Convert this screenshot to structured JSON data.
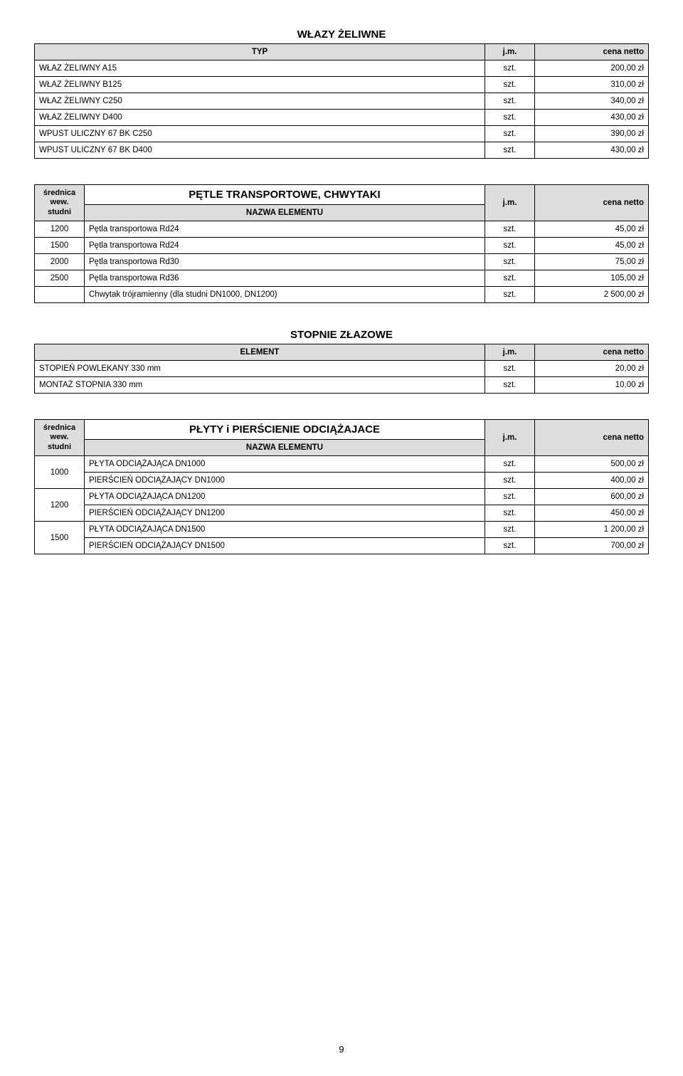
{
  "page_number": "9",
  "colors": {
    "header_bg": "#dddddd",
    "border": "#000000",
    "text": "#000000",
    "bg": "#ffffff"
  },
  "section1": {
    "title": "WŁAZY ŻELIWNE",
    "headers": {
      "typ": "TYP",
      "jm": "j.m.",
      "price": "cena netto"
    },
    "rows": [
      {
        "name": "WŁAZ ŻELIWNY A15",
        "jm": "szt.",
        "price": "200,00 zł"
      },
      {
        "name": "WŁAZ ŻELIWNY B125",
        "jm": "szt.",
        "price": "310,00 zł"
      },
      {
        "name": "WŁAZ ŻELIWNY C250",
        "jm": "szt.",
        "price": "340,00 zł"
      },
      {
        "name": "WŁAZ ŻELIWNY D400",
        "jm": "szt.",
        "price": "430,00 zł"
      },
      {
        "name": "WPUST ULICZNY 67 BK C250",
        "jm": "szt.",
        "price": "390,00 zł"
      },
      {
        "name": "WPUST ULICZNY 67 BK D400",
        "jm": "szt.",
        "price": "430,00 zł"
      }
    ]
  },
  "section2": {
    "title": "PĘTLE TRANSPORTOWE, CHWYTAKI",
    "headers": {
      "dia": "średnica wew. studni",
      "name": "NAZWA ELEMENTU",
      "jm": "j.m.",
      "price": "cena netto"
    },
    "rows": [
      {
        "dia": "1200",
        "name": "Pętla transportowa Rd24",
        "jm": "szt.",
        "price": "45,00 zł"
      },
      {
        "dia": "1500",
        "name": "Pętla transportowa Rd24",
        "jm": "szt.",
        "price": "45,00 zł"
      },
      {
        "dia": "2000",
        "name": "Pętla transportowa Rd30",
        "jm": "szt.",
        "price": "75,00 zł"
      },
      {
        "dia": "2500",
        "name": "Pętla transportowa Rd36",
        "jm": "szt.",
        "price": "105,00 zł"
      },
      {
        "dia": "",
        "name": "Chwytak trójramienny (dla studni DN1000, DN1200)",
        "jm": "szt.",
        "price": "2 500,00 zł"
      }
    ]
  },
  "section3": {
    "title": "STOPNIE ZŁAZOWE",
    "headers": {
      "el": "ELEMENT",
      "jm": "j.m.",
      "price": "cena netto"
    },
    "rows": [
      {
        "name": "STOPIEŃ POWLEKANY 330 mm",
        "jm": "szt.",
        "price": "20,00 zł"
      },
      {
        "name": "MONTAŻ STOPNIA 330 mm",
        "jm": "szt.",
        "price": "10,00 zł"
      }
    ]
  },
  "section4": {
    "title": "PŁYTY i PIERŚCIENIE ODCIĄŻAJACE",
    "headers": {
      "dia": "średnica wew. studni",
      "name": "NAZWA ELEMENTU",
      "jm": "j.m.",
      "price": "cena netto"
    },
    "groups": [
      {
        "dia": "1000",
        "rows": [
          {
            "name": "PŁYTA ODCIĄŻAJĄCA DN1000",
            "jm": "szt.",
            "price": "500,00 zł"
          },
          {
            "name": "PIERŚCIEŃ ODCIĄŻAJĄCY DN1000",
            "jm": "szt.",
            "price": "400,00 zł"
          }
        ]
      },
      {
        "dia": "1200",
        "rows": [
          {
            "name": "PŁYTA ODCIĄŻAJĄCA DN1200",
            "jm": "szt.",
            "price": "600,00 zł"
          },
          {
            "name": "PIERŚCIEŃ ODCIĄŻAJĄCY DN1200",
            "jm": "szt.",
            "price": "450,00 zł"
          }
        ]
      },
      {
        "dia": "1500",
        "rows": [
          {
            "name": "PŁYTA ODCIĄŻAJĄCA DN1500",
            "jm": "szt.",
            "price": "1 200,00 zł"
          },
          {
            "name": "PIERŚCIEŃ ODCIĄŻAJĄCY DN1500",
            "jm": "szt.",
            "price": "700,00 zł"
          }
        ]
      }
    ]
  }
}
